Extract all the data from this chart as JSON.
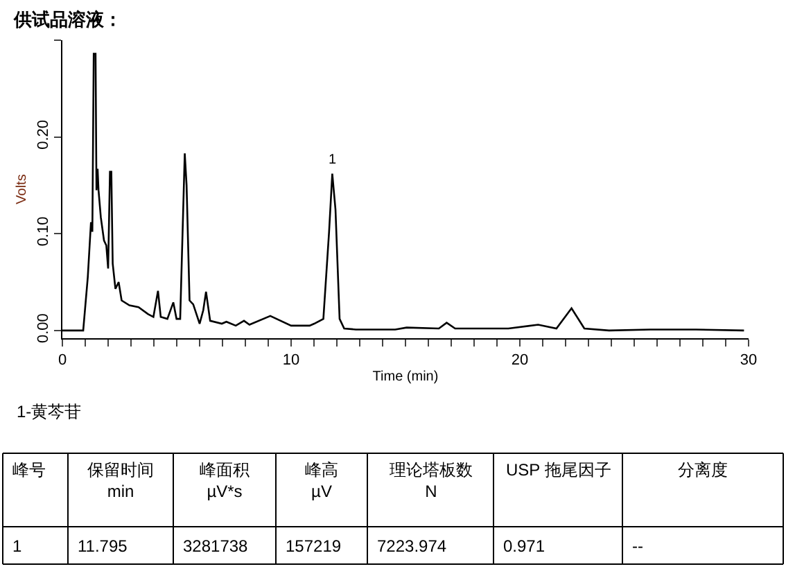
{
  "chart_data": {
    "type": "line",
    "title": "供试品溶液：",
    "xlabel": "Time (min)",
    "ylabel": "Volts",
    "x": [
      0,
      0.91,
      1.11,
      1.25,
      1.31,
      1.37,
      1.45,
      1.49,
      1.54,
      1.58,
      1.68,
      1.82,
      1.92,
      2.0,
      2.08,
      2.14,
      2.2,
      2.32,
      2.46,
      2.59,
      2.93,
      3.33,
      3.74,
      3.98,
      4.18,
      4.3,
      4.59,
      4.85,
      4.99,
      5.15,
      5.35,
      5.43,
      5.56,
      5.72,
      6.0,
      6.16,
      6.28,
      6.46,
      6.97,
      7.17,
      7.58,
      7.94,
      8.18,
      9.09,
      10.0,
      10.81,
      11.01,
      11.41,
      11.66,
      11.8,
      11.94,
      12.12,
      12.32,
      12.83,
      14.55,
      15.05,
      16.46,
      16.8,
      17.17,
      19.5,
      20.8,
      21.6,
      22.26,
      22.82,
      23.9,
      25.7,
      27.7,
      29.8
    ],
    "series": [
      {
        "color": "#000000",
        "values": [
          0,
          0,
          0.055,
          0.112,
          0.102,
          0.286,
          0.286,
          0.145,
          0.167,
          0.145,
          0.117,
          0.093,
          0.088,
          0.064,
          0.164,
          0.164,
          0.069,
          0.043,
          0.05,
          0.031,
          0.026,
          0.024,
          0.017,
          0.014,
          0.041,
          0.014,
          0.012,
          0.029,
          0.012,
          0.012,
          0.183,
          0.15,
          0.031,
          0.027,
          0.007,
          0.021,
          0.04,
          0.01,
          0.007,
          0.009,
          0.005,
          0.01,
          0.006,
          0.015,
          0.005,
          0.005,
          0.007,
          0.012,
          0.102,
          0.162,
          0.125,
          0.012,
          0.002,
          0.001,
          0.001,
          0.003,
          0.002,
          0.008,
          0.002,
          0.002,
          0.006,
          0.002,
          0.023,
          0.002,
          0,
          0.001,
          0.001,
          0
        ]
      }
    ],
    "xlim": [
      0,
      30
    ],
    "ylim": [
      -0.008,
      0.3
    ],
    "xticks": [
      0,
      {
        "value": 1,
        "label": null
      },
      {
        "value": 2,
        "label": null
      },
      {
        "value": 3,
        "label": null
      },
      {
        "value": 4,
        "label": null
      },
      {
        "value": 5,
        "label": null
      },
      {
        "value": 6,
        "label": null
      },
      {
        "value": 7,
        "label": null
      },
      {
        "value": 8,
        "label": null
      },
      {
        "value": 9,
        "label": null
      },
      10,
      {
        "value": 11,
        "label": null
      },
      {
        "value": 12,
        "label": null
      },
      {
        "value": 13,
        "label": null
      },
      {
        "value": 14,
        "label": null
      },
      {
        "value": 15,
        "label": null
      },
      {
        "value": 16,
        "label": null
      },
      {
        "value": 17,
        "label": null
      },
      {
        "value": 18,
        "label": null
      },
      {
        "value": 19,
        "label": null
      },
      20,
      {
        "value": 21,
        "label": null
      },
      {
        "value": 22,
        "label": null
      },
      {
        "value": 23,
        "label": null
      },
      {
        "value": 24,
        "label": null
      },
      {
        "value": 25,
        "label": null
      },
      {
        "value": 26,
        "label": null
      },
      {
        "value": 27,
        "label": null
      },
      {
        "value": 28,
        "label": null
      },
      {
        "value": 29,
        "label": null
      },
      30
    ],
    "yticks": [
      {
        "value": 0,
        "label": "0.00"
      },
      {
        "value": 0.1,
        "label": "0.10"
      },
      {
        "value": 0.2,
        "label": "0.20"
      },
      {
        "value": 0.3,
        "label": null
      }
    ],
    "marker": "none",
    "line_style": "solid",
    "annotations": [
      {
        "text": "1",
        "x": 11.8,
        "y": 0.162
      },
      "1-黄芩苷",
      "峰号",
      "保留时间\nmin",
      "峰面积\nµV*s",
      "峰高\nµV",
      "理论塔板数\nN",
      "USP 拖尾因子",
      "分离度",
      "1",
      "11.795",
      "3281738",
      "157219",
      "7223.974",
      "0.971",
      "--"
    ]
  }
}
